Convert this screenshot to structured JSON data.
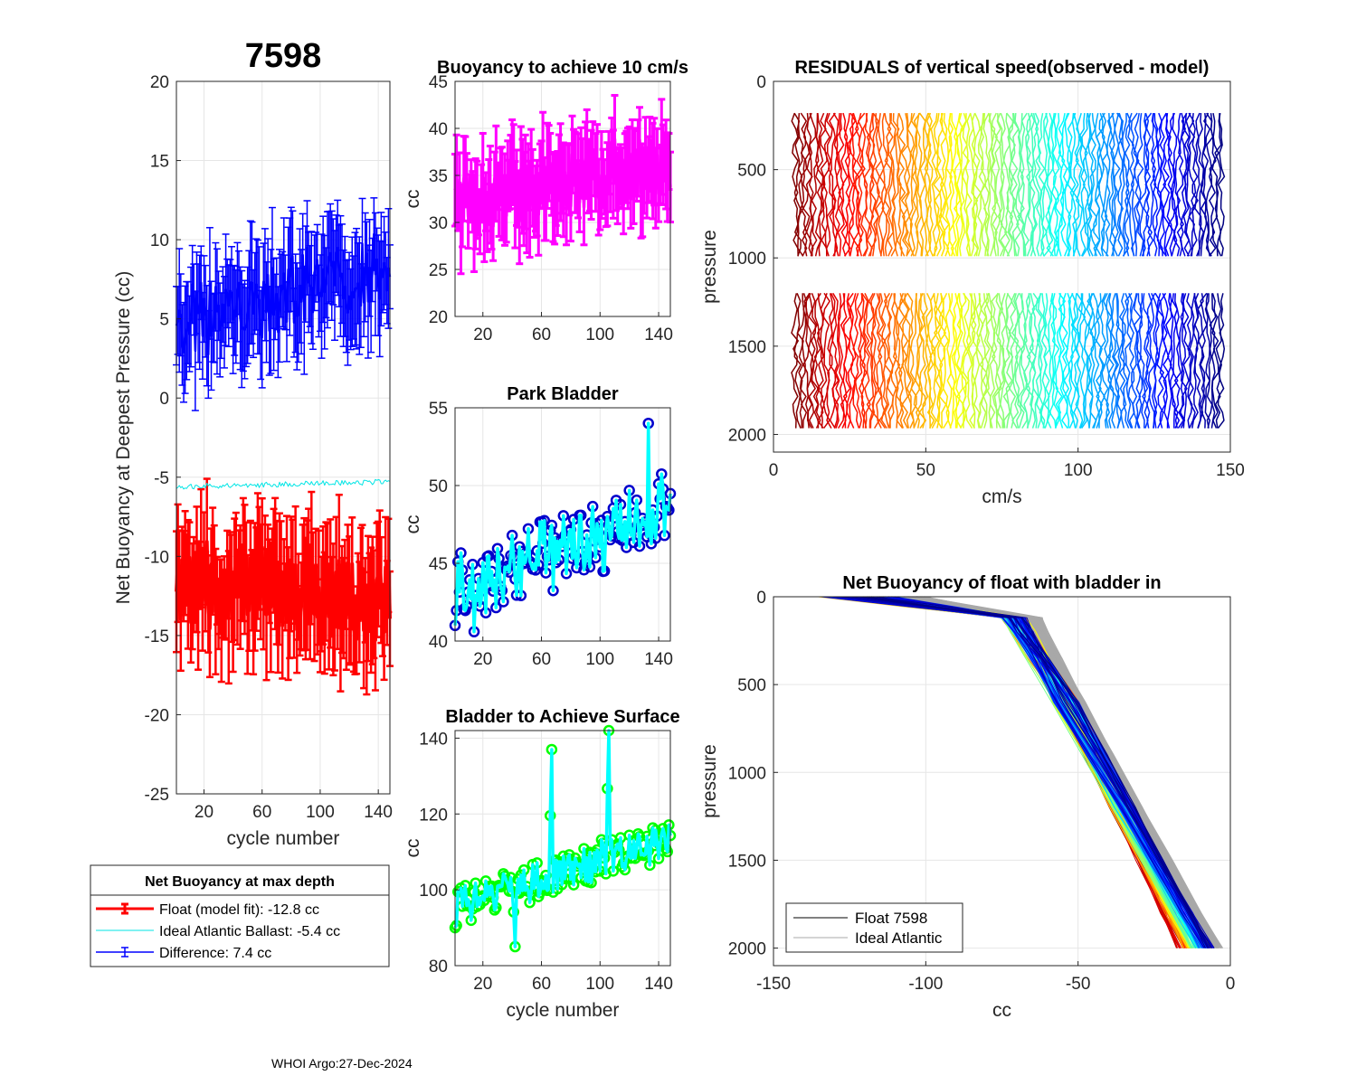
{
  "figure_title": "7598",
  "footer": "WHOI Argo:27-Dec-2024",
  "colors": {
    "float": "#ff0000",
    "ideal": "#00e5e5",
    "difference": "#0000ff",
    "magenta": "#ff00ff",
    "navy": "#0000cc",
    "cyan": "#00ffff",
    "green": "#00ff00",
    "grid": "#e6e6e6"
  },
  "chart_data": [
    {
      "id": "net-buoyancy",
      "type": "line",
      "title": "",
      "xlabel": "cycle number",
      "ylabel": "Net Buoyancy at Deepest Pressure (cc)",
      "xlim": [
        1,
        148
      ],
      "ylim": [
        -25,
        20
      ],
      "xticks": [
        20,
        60,
        100,
        140
      ],
      "yticks": [
        -25,
        -20,
        -15,
        -10,
        -5,
        0,
        5,
        10,
        15,
        20
      ],
      "series": [
        {
          "name": "Float (model fit)",
          "summary": "-12.8 cc",
          "mean_start": -11.5,
          "mean_end": -13.0,
          "amplitude": 2.5,
          "err": 3.5
        },
        {
          "name": "Ideal Atlantic Ballast",
          "summary": "-5.4 cc",
          "mean_start": -5.6,
          "mean_end": -5.3
        },
        {
          "name": "Difference",
          "summary": "7.4 cc",
          "mean_start": 4.5,
          "mean_end": 8.5,
          "amplitude": 2.2,
          "err": 3.3
        }
      ],
      "legend": {
        "title": "Net Buoyancy at max depth",
        "entries": [
          "Float (model fit): -12.8 cc",
          "Ideal Atlantic Ballast:  -5.4 cc",
          "Difference:   7.4 cc"
        ]
      }
    },
    {
      "id": "buoyancy-10cms",
      "type": "line",
      "title": "Buoyancy to achieve 10 cm/s",
      "xlabel": "",
      "ylabel": "cc",
      "xlim": [
        1,
        148
      ],
      "ylim": [
        20,
        45
      ],
      "xticks": [
        20,
        60,
        100,
        140
      ],
      "yticks": [
        20,
        25,
        30,
        35,
        40,
        45
      ],
      "series": [
        {
          "name": "buoyancy",
          "mean_start": 32,
          "mean_end": 36,
          "amplitude": 3,
          "err": 4
        }
      ]
    },
    {
      "id": "park-bladder",
      "type": "line",
      "title": "Park Bladder",
      "xlabel": "",
      "ylabel": "cc",
      "xlim": [
        1,
        148
      ],
      "ylim": [
        40,
        55
      ],
      "xticks": [
        20,
        60,
        100,
        140
      ],
      "yticks": [
        40,
        45,
        50,
        55
      ],
      "series": [
        {
          "name": "park bladder",
          "mean_start": 43.5,
          "mean_end": 48.5,
          "amplitude": 2.2,
          "max": 54
        }
      ]
    },
    {
      "id": "bladder-surface",
      "type": "line",
      "title": "Bladder to Achieve Surface",
      "xlabel": "cycle number",
      "ylabel": "cc",
      "xlim": [
        1,
        148
      ],
      "ylim": [
        80,
        142
      ],
      "xticks": [
        20,
        60,
        100,
        140
      ],
      "yticks": [
        80,
        100,
        120,
        140
      ],
      "series": [
        {
          "name": "surface bladder",
          "mean_start": 95,
          "mean_end": 114,
          "amplitude": 5,
          "peaks": [
            [
              67,
              137
            ],
            [
              106,
              142
            ],
            [
              42,
              85
            ]
          ]
        }
      ]
    },
    {
      "id": "residuals",
      "type": "line",
      "title": "RESIDUALS of vertical speed(observed - model)",
      "xlabel": "cm/s",
      "ylabel": "pressure",
      "xlim": [
        0,
        150
      ],
      "ylim": [
        0,
        2100
      ],
      "y_reversed": true,
      "xticks": [
        0,
        50,
        100,
        150
      ],
      "yticks": [
        0,
        500,
        1000,
        1500,
        2000
      ],
      "profile_segments": [
        [
          180,
          1020
        ],
        [
          1200,
          2000
        ]
      ],
      "n_profiles": 148
    },
    {
      "id": "net-buoyancy-bladder-in",
      "type": "line",
      "title": "Net Buoyancy of float with bladder in",
      "xlabel": "cc",
      "ylabel": "pressure",
      "xlim": [
        -150,
        0
      ],
      "ylim": [
        0,
        2100
      ],
      "y_reversed": true,
      "xticks": [
        -150,
        -100,
        -50,
        0
      ],
      "yticks": [
        0,
        500,
        1000,
        1500,
        2000
      ],
      "legend": {
        "entries": [
          "Float 7598",
          "Ideal Atlantic"
        ]
      }
    }
  ]
}
